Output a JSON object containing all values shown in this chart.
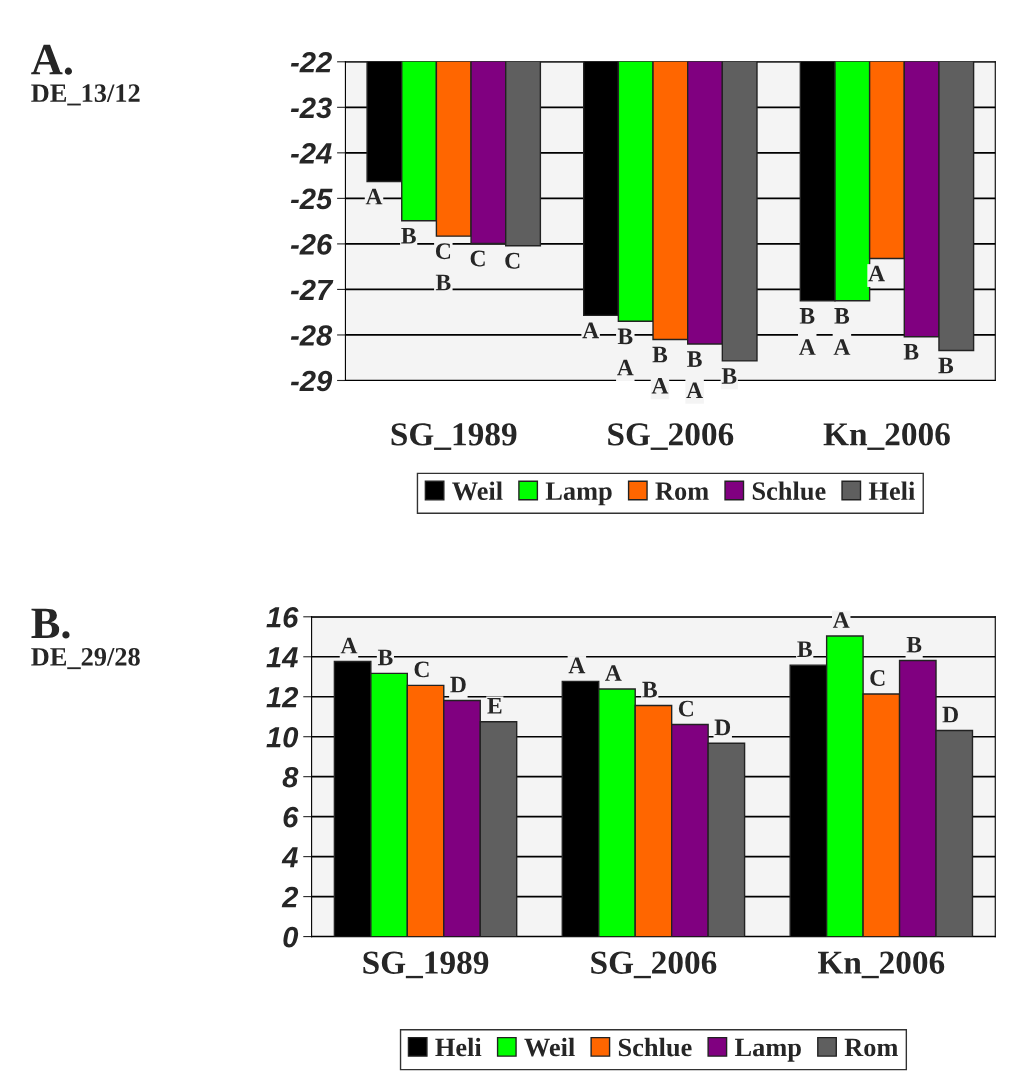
{
  "chart_data": [
    {
      "type": "bar",
      "title": "A.",
      "subtitle": "DE_13/12",
      "categories": [
        "SG_1989",
        "SG_2006",
        "Kn_2006"
      ],
      "ylim": [
        -29,
        -22
      ],
      "yticks": [
        -22,
        -23,
        -24,
        -25,
        -26,
        -27,
        -28,
        -29
      ],
      "grid": "y",
      "legend": "bottom",
      "series": [
        {
          "name": "Weil",
          "color": "#000000",
          "values": [
            -24.63,
            -27.57,
            -27.25
          ],
          "value_labels": [
            "A",
            "A",
            "B\nA"
          ]
        },
        {
          "name": "Lamp",
          "color": "#00ff00",
          "values": [
            -25.49,
            -27.7,
            -27.25
          ],
          "value_labels": [
            "B",
            "B\nA",
            "B\nA"
          ]
        },
        {
          "name": "Rom",
          "color": "#ff6600",
          "values": [
            -25.83,
            -28.1,
            -26.32
          ],
          "value_labels": [
            "C\nB",
            "B\nA",
            "A"
          ]
        },
        {
          "name": "Schlue",
          "color": "#800080",
          "values": [
            -25.99,
            -28.2,
            -28.04
          ],
          "value_labels": [
            "C",
            "B\nA",
            "B"
          ]
        },
        {
          "name": "Heli",
          "color": "#5f5f5f",
          "values": [
            -26.04,
            -28.57,
            -28.34
          ],
          "value_labels": [
            "C",
            "B",
            "B"
          ]
        }
      ]
    },
    {
      "type": "bar",
      "title": "B.",
      "subtitle": "DE_29/28",
      "categories": [
        "SG_1989",
        "SG_2006",
        "Kn_2006"
      ],
      "ylim": [
        0,
        16
      ],
      "yticks": [
        0,
        2,
        4,
        6,
        8,
        10,
        12,
        14,
        16
      ],
      "grid": "y",
      "legend": "bottom",
      "series": [
        {
          "name": "Heli",
          "color": "#000000",
          "values": [
            13.76,
            12.77,
            13.58
          ],
          "value_labels": [
            "A",
            "A",
            "B"
          ]
        },
        {
          "name": "Weil",
          "color": "#00ff00",
          "values": [
            13.17,
            12.39,
            15.04
          ],
          "value_labels": [
            "B",
            "A",
            "A"
          ]
        },
        {
          "name": "Schlue",
          "color": "#ff6600",
          "values": [
            12.57,
            11.56,
            12.14
          ],
          "value_labels": [
            "C",
            "B",
            "C"
          ]
        },
        {
          "name": "Lamp",
          "color": "#800080",
          "values": [
            11.81,
            10.61,
            13.81
          ],
          "value_labels": [
            "D",
            "C",
            "B"
          ]
        },
        {
          "name": "Rom",
          "color": "#5f5f5f",
          "values": [
            10.75,
            9.67,
            10.31
          ],
          "value_labels": [
            "E",
            "D",
            "D"
          ]
        }
      ]
    }
  ]
}
